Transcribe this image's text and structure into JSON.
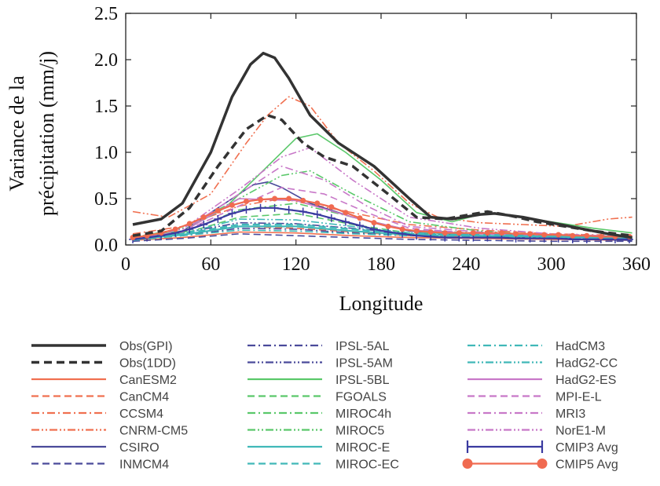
{
  "chart_data": {
    "type": "line",
    "title": "",
    "xlabel": "Longitude",
    "ylabel_lines": [
      "Variance de la",
      "précipitation (mm/j)"
    ],
    "xlim": [
      0,
      360
    ],
    "ylim": [
      0,
      2.5
    ],
    "xticks": [
      0,
      60,
      120,
      180,
      240,
      300,
      360
    ],
    "xtick_labels": [
      "0",
      "60",
      "120",
      "180",
      "240",
      "300",
      "360"
    ],
    "yticks": [
      0,
      0.5,
      1.0,
      1.5,
      2.0,
      2.5
    ],
    "ytick_labels": [
      "0.0",
      "0.5",
      "1.0",
      "1.5",
      "2.0",
      "2.5"
    ],
    "grid": false,
    "legend_placement": "below",
    "series": [
      {
        "name": "Obs(GPI)",
        "color": "#333333",
        "dash": "solid",
        "width": 3.5,
        "x": [
          5,
          25,
          40,
          60,
          75,
          88,
          97,
          105,
          115,
          130,
          150,
          175,
          200,
          215,
          230,
          250,
          260,
          280,
          300,
          320,
          340,
          357
        ],
        "y": [
          0.22,
          0.28,
          0.45,
          1.0,
          1.6,
          1.95,
          2.07,
          2.02,
          1.8,
          1.4,
          1.1,
          0.85,
          0.5,
          0.3,
          0.28,
          0.33,
          0.34,
          0.3,
          0.24,
          0.18,
          0.12,
          0.08
        ]
      },
      {
        "name": "Obs(1DD)",
        "color": "#333333",
        "dash": "10,6",
        "width": 3.5,
        "x": [
          5,
          25,
          45,
          65,
          85,
          100,
          110,
          125,
          140,
          160,
          185,
          205,
          225,
          240,
          255,
          270,
          290,
          310,
          330,
          357
        ],
        "y": [
          0.1,
          0.15,
          0.4,
          0.85,
          1.25,
          1.4,
          1.35,
          1.1,
          0.95,
          0.85,
          0.55,
          0.3,
          0.28,
          0.32,
          0.36,
          0.32,
          0.25,
          0.2,
          0.15,
          0.1
        ]
      },
      {
        "name": "CanESM2",
        "color": "#f07050",
        "dash": "solid",
        "width": 1.6,
        "x": [
          5,
          40,
          80,
          120,
          160,
          200,
          250,
          300,
          357
        ],
        "y": [
          0.05,
          0.08,
          0.14,
          0.13,
          0.1,
          0.08,
          0.07,
          0.06,
          0.05
        ]
      },
      {
        "name": "CanCM4",
        "color": "#f07050",
        "dash": "9,5",
        "width": 1.6,
        "x": [
          5,
          40,
          80,
          120,
          160,
          200,
          250,
          300,
          357
        ],
        "y": [
          0.07,
          0.12,
          0.2,
          0.18,
          0.14,
          0.1,
          0.09,
          0.08,
          0.07
        ]
      },
      {
        "name": "CCSM4",
        "color": "#f07050",
        "dash": "10,4,2,4",
        "width": 1.6,
        "x": [
          5,
          40,
          80,
          110,
          150,
          200,
          250,
          300,
          357
        ],
        "y": [
          0.12,
          0.2,
          0.42,
          0.5,
          0.38,
          0.22,
          0.16,
          0.12,
          0.1
        ]
      },
      {
        "name": "CNRM-CM5",
        "color": "#f07050",
        "dash": "10,3,2,3,2,3",
        "width": 1.6,
        "x": [
          5,
          30,
          60,
          85,
          100,
          115,
          130,
          150,
          175,
          200,
          220,
          250,
          280,
          310,
          340,
          357
        ],
        "y": [
          0.36,
          0.3,
          0.55,
          1.1,
          1.4,
          1.6,
          1.5,
          1.1,
          0.8,
          0.45,
          0.3,
          0.24,
          0.22,
          0.2,
          0.28,
          0.3
        ]
      },
      {
        "name": "CSIRO",
        "color": "#4a4a9a",
        "dash": "solid",
        "width": 1.6,
        "x": [
          5,
          40,
          70,
          90,
          100,
          110,
          130,
          160,
          200,
          250,
          300,
          357
        ],
        "y": [
          0.06,
          0.15,
          0.45,
          0.65,
          0.68,
          0.62,
          0.45,
          0.3,
          0.15,
          0.1,
          0.07,
          0.05
        ]
      },
      {
        "name": "INMCM4",
        "color": "#4a4a9a",
        "dash": "9,5",
        "width": 1.6,
        "x": [
          5,
          40,
          80,
          120,
          160,
          200,
          250,
          300,
          357
        ],
        "y": [
          0.04,
          0.07,
          0.12,
          0.1,
          0.08,
          0.06,
          0.05,
          0.04,
          0.04
        ]
      },
      {
        "name": "IPSL-5AL",
        "color": "#4a4a9a",
        "dash": "10,4,2,4",
        "width": 1.6,
        "x": [
          5,
          40,
          80,
          120,
          160,
          200,
          250,
          300,
          357
        ],
        "y": [
          0.06,
          0.1,
          0.18,
          0.17,
          0.13,
          0.1,
          0.08,
          0.07,
          0.06
        ]
      },
      {
        "name": "IPSL-5AM",
        "color": "#4a4a9a",
        "dash": "10,3,2,3,2,3",
        "width": 1.6,
        "x": [
          5,
          40,
          80,
          120,
          160,
          200,
          250,
          300,
          357
        ],
        "y": [
          0.08,
          0.13,
          0.24,
          0.23,
          0.18,
          0.12,
          0.1,
          0.08,
          0.07
        ]
      },
      {
        "name": "IPSL-5BL",
        "color": "#5ac86a",
        "dash": "solid",
        "width": 1.6,
        "x": [
          5,
          40,
          70,
          100,
          120,
          135,
          155,
          180,
          205,
          230,
          255,
          270,
          300,
          330,
          357
        ],
        "y": [
          0.08,
          0.15,
          0.4,
          0.85,
          1.15,
          1.2,
          1.0,
          0.7,
          0.35,
          0.25,
          0.35,
          0.32,
          0.25,
          0.18,
          0.13
        ]
      },
      {
        "name": "FGOALS",
        "color": "#5ac86a",
        "dash": "9,5",
        "width": 1.6,
        "x": [
          5,
          40,
          80,
          120,
          160,
          200,
          250,
          300,
          357
        ],
        "y": [
          0.06,
          0.12,
          0.3,
          0.34,
          0.22,
          0.13,
          0.12,
          0.1,
          0.08
        ]
      },
      {
        "name": "MIROC4h",
        "color": "#5ac86a",
        "dash": "10,4,2,4",
        "width": 1.6,
        "x": [
          5,
          40,
          80,
          120,
          160,
          200,
          250,
          300,
          357
        ],
        "y": [
          0.07,
          0.13,
          0.38,
          0.45,
          0.3,
          0.16,
          0.13,
          0.1,
          0.08
        ]
      },
      {
        "name": "MIROC5",
        "color": "#5ac86a",
        "dash": "10,3,2,3,2,3",
        "width": 1.6,
        "x": [
          5,
          40,
          80,
          110,
          130,
          160,
          200,
          250,
          300,
          357
        ],
        "y": [
          0.08,
          0.18,
          0.5,
          0.75,
          0.8,
          0.55,
          0.25,
          0.15,
          0.1,
          0.08
        ]
      },
      {
        "name": "MIROC-E",
        "color": "#40b8b8",
        "dash": "solid",
        "width": 2.2,
        "x": [
          5,
          40,
          80,
          120,
          160,
          200,
          250,
          300,
          357
        ],
        "y": [
          0.06,
          0.11,
          0.2,
          0.2,
          0.15,
          0.11,
          0.1,
          0.09,
          0.07
        ]
      },
      {
        "name": "MIROC-EC",
        "color": "#40b8b8",
        "dash": "9,5",
        "width": 2.2,
        "x": [
          5,
          40,
          80,
          120,
          160,
          200,
          250,
          300,
          357
        ],
        "y": [
          0.07,
          0.12,
          0.22,
          0.22,
          0.17,
          0.12,
          0.11,
          0.1,
          0.08
        ]
      },
      {
        "name": "HadCM3",
        "color": "#40b8b8",
        "dash": "10,4,2,4",
        "width": 1.6,
        "x": [
          5,
          40,
          80,
          120,
          160,
          200,
          250,
          300,
          357
        ],
        "y": [
          0.05,
          0.1,
          0.16,
          0.15,
          0.12,
          0.1,
          0.09,
          0.08,
          0.06
        ]
      },
      {
        "name": "HadG2-CC",
        "color": "#40b8b8",
        "dash": "10,3,2,3,2,3",
        "width": 1.6,
        "x": [
          5,
          40,
          80,
          120,
          160,
          200,
          250,
          300,
          357
        ],
        "y": [
          0.06,
          0.12,
          0.28,
          0.27,
          0.2,
          0.13,
          0.12,
          0.11,
          0.09
        ]
      },
      {
        "name": "HadG2-ES",
        "color": "#c878c8",
        "dash": "solid",
        "width": 1.6,
        "x": [
          5,
          40,
          80,
          120,
          160,
          200,
          250,
          300,
          357
        ],
        "y": [
          0.06,
          0.14,
          0.5,
          0.48,
          0.3,
          0.16,
          0.12,
          0.1,
          0.08
        ]
      },
      {
        "name": "MPI-E-L",
        "color": "#c878c8",
        "dash": "9,5",
        "width": 1.6,
        "x": [
          5,
          40,
          80,
          110,
          140,
          170,
          200,
          250,
          300,
          357
        ],
        "y": [
          0.06,
          0.14,
          0.42,
          0.62,
          0.55,
          0.35,
          0.18,
          0.12,
          0.1,
          0.08
        ]
      },
      {
        "name": "MRI3",
        "color": "#c878c8",
        "dash": "10,4,2,4",
        "width": 1.6,
        "x": [
          5,
          40,
          80,
          110,
          140,
          170,
          200,
          250,
          300,
          357
        ],
        "y": [
          0.06,
          0.15,
          0.55,
          0.85,
          0.7,
          0.42,
          0.2,
          0.14,
          0.1,
          0.08
        ]
      },
      {
        "name": "NorE1-M",
        "color": "#c878c8",
        "dash": "10,3,2,3,2,3",
        "width": 1.6,
        "x": [
          5,
          40,
          80,
          110,
          130,
          160,
          200,
          250,
          300,
          357
        ],
        "y": [
          0.07,
          0.17,
          0.6,
          0.95,
          1.05,
          0.7,
          0.3,
          0.18,
          0.12,
          0.09
        ]
      },
      {
        "name": "CMIP3 Avg",
        "color": "#3a3aa0",
        "dash": "solid",
        "width": 2.2,
        "marker": "plus",
        "x": [
          5,
          15,
          25,
          35,
          45,
          55,
          65,
          75,
          85,
          95,
          105,
          115,
          125,
          135,
          145,
          155,
          165,
          175,
          185,
          195,
          205,
          215,
          225,
          235,
          245,
          255,
          265,
          275,
          285,
          295,
          305,
          315,
          325,
          335,
          345,
          355
        ],
        "y": [
          0.06,
          0.08,
          0.1,
          0.13,
          0.17,
          0.22,
          0.28,
          0.34,
          0.38,
          0.4,
          0.4,
          0.38,
          0.36,
          0.33,
          0.29,
          0.25,
          0.21,
          0.17,
          0.14,
          0.12,
          0.1,
          0.09,
          0.08,
          0.08,
          0.08,
          0.08,
          0.08,
          0.07,
          0.07,
          0.07,
          0.07,
          0.06,
          0.06,
          0.06,
          0.06,
          0.06
        ]
      },
      {
        "name": "CMIP5 Avg",
        "color": "#f06a50",
        "dash": "solid",
        "width": 2.2,
        "marker": "circle",
        "x": [
          5,
          15,
          25,
          35,
          45,
          55,
          65,
          75,
          85,
          95,
          105,
          115,
          125,
          135,
          145,
          155,
          165,
          175,
          185,
          195,
          205,
          215,
          225,
          235,
          245,
          255,
          265,
          275,
          285,
          295,
          305,
          315,
          325,
          335,
          345,
          355
        ],
        "y": [
          0.08,
          0.1,
          0.13,
          0.17,
          0.23,
          0.3,
          0.37,
          0.43,
          0.47,
          0.49,
          0.5,
          0.5,
          0.48,
          0.45,
          0.41,
          0.35,
          0.29,
          0.24,
          0.2,
          0.17,
          0.15,
          0.14,
          0.13,
          0.13,
          0.13,
          0.13,
          0.13,
          0.12,
          0.12,
          0.11,
          0.11,
          0.1,
          0.1,
          0.09,
          0.09,
          0.09
        ]
      }
    ]
  }
}
